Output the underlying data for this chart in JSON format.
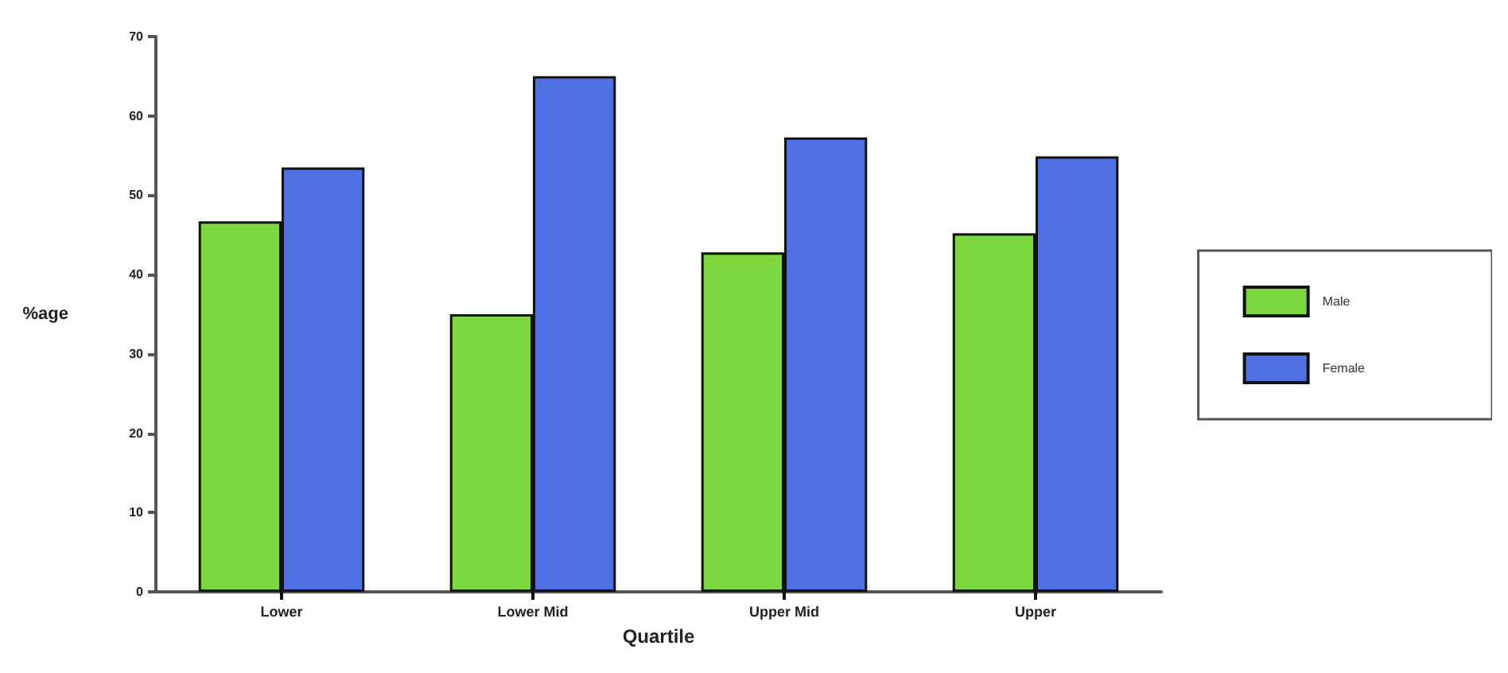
{
  "chart_data": {
    "type": "bar",
    "xlabel": "Quartile",
    "ylabel": "%age",
    "categories": [
      "Lower",
      "Lower Mid",
      "Upper Mid",
      "Upper"
    ],
    "series": [
      {
        "name": "Male",
        "color": "#7dd83f",
        "values": [
          46.7,
          35,
          42.8,
          45.2
        ]
      },
      {
        "name": "Female",
        "color": "#4f71e3",
        "values": [
          53.5,
          65,
          57.3,
          54.9
        ]
      }
    ],
    "ylim": [
      0,
      70
    ],
    "yticks": [
      0,
      10,
      20,
      30,
      40,
      50,
      60,
      70
    ],
    "grid": false,
    "legend": "right"
  }
}
